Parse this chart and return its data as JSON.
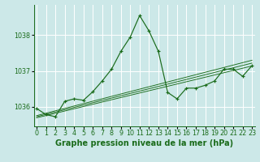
{
  "title": "Graphe pression niveau de la mer (hPa)",
  "x": [
    0,
    1,
    2,
    3,
    4,
    5,
    6,
    7,
    8,
    9,
    10,
    11,
    12,
    13,
    14,
    15,
    16,
    17,
    18,
    19,
    20,
    21,
    22,
    23
  ],
  "y_main": [
    1035.95,
    1035.78,
    1035.72,
    1036.15,
    1036.22,
    1036.18,
    1036.42,
    1036.72,
    1037.05,
    1037.55,
    1037.95,
    1038.55,
    1038.12,
    1037.55,
    1036.4,
    1036.22,
    1036.52,
    1036.52,
    1036.6,
    1036.72,
    1037.05,
    1037.05,
    1036.85,
    1037.15
  ],
  "trend_lines": [
    {
      "x": [
        0,
        23
      ],
      "y": [
        1035.75,
        1037.3
      ]
    },
    {
      "x": [
        0,
        23
      ],
      "y": [
        1035.72,
        1037.22
      ]
    },
    {
      "x": [
        0,
        23
      ],
      "y": [
        1035.69,
        1037.14
      ]
    }
  ],
  "line_color": "#1a6b1a",
  "bg_color": "#cce8e8",
  "grid_color": "#ffffff",
  "ylim_min": 1035.45,
  "ylim_max": 1038.85,
  "xlim_min": -0.3,
  "xlim_max": 23.3,
  "yticks": [
    1036,
    1037,
    1038
  ],
  "font_size_title": 7.0,
  "font_size_ticks": 5.8
}
